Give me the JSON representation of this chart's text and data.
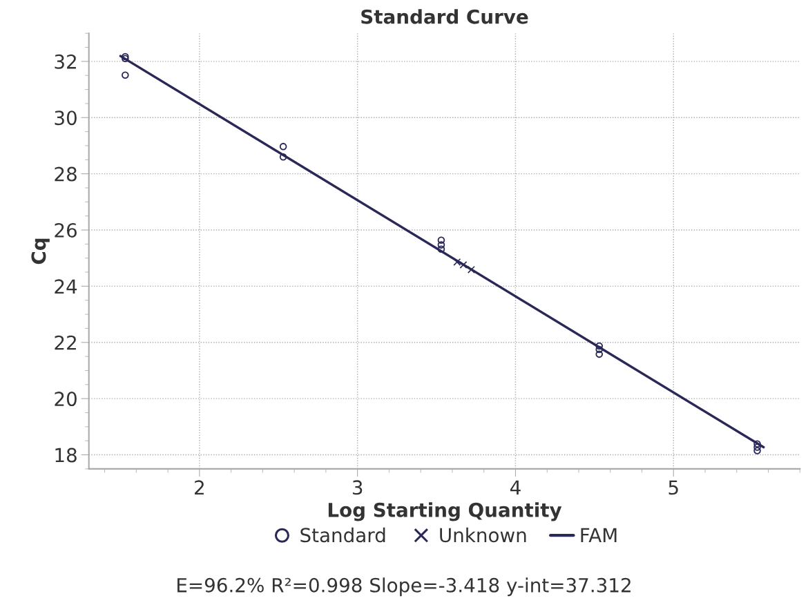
{
  "chart_data": {
    "type": "scatter",
    "title": "Standard Curve",
    "xlabel": "Log Starting Quantity",
    "ylabel": "Cq",
    "xlim": [
      1.3,
      5.8
    ],
    "xticks": [
      2,
      3,
      4,
      5
    ],
    "ylim": [
      17.5,
      33
    ],
    "yticks": [
      18,
      20,
      22,
      24,
      26,
      28,
      30,
      32
    ],
    "grid": true,
    "legend": "bottom",
    "series": [
      {
        "name": "Standard",
        "marker": "circle",
        "color": "#2a2857",
        "x": [
          1.53,
          1.53,
          1.53,
          2.53,
          2.53,
          3.53,
          3.53,
          3.53,
          4.53,
          4.53,
          4.53,
          5.53,
          5.53,
          5.53
        ],
        "values": [
          32.17,
          32.1,
          31.51,
          28.97,
          28.6,
          25.64,
          25.47,
          25.32,
          21.87,
          21.75,
          21.58,
          18.39,
          18.27,
          18.15
        ]
      },
      {
        "name": "Unknown",
        "marker": "cross",
        "color": "#2a2857",
        "x": [
          3.63,
          3.67,
          3.72
        ],
        "values": [
          24.86,
          24.76,
          24.59
        ]
      },
      {
        "name": "FAM",
        "type": "line",
        "marker": "none",
        "line_style": "solid",
        "color": "#2a2857",
        "x": [
          1.5,
          5.57
        ],
        "values": [
          32.19,
          18.27
        ]
      }
    ],
    "annotations": [
      "E=96.2% R²=0.998 Slope=-3.418 y-int=37.312"
    ]
  }
}
